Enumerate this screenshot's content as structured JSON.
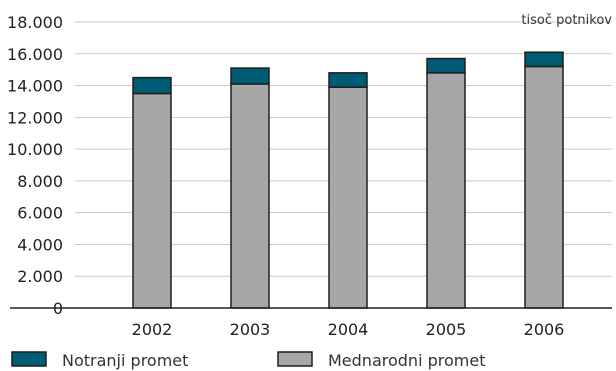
{
  "chart_data": {
    "type": "bar",
    "stacked": true,
    "unit_label": "tisoč potnikov",
    "categories": [
      "2002",
      "2003",
      "2004",
      "2005",
      "2006"
    ],
    "series": [
      {
        "name": "Mednarodni promet",
        "color": "#a7a7aa",
        "values": [
          13500,
          14100,
          13900,
          14800,
          15200
        ]
      },
      {
        "name": "Notranji promet",
        "color": "#005b74",
        "values": [
          1000,
          1000,
          900,
          900,
          900
        ]
      }
    ],
    "yticks": [
      "0",
      "2.000",
      "4.000",
      "6.000",
      "8.000",
      "10.000",
      "12.000",
      "14.000",
      "16.000",
      "18.000"
    ],
    "ylim": [
      0,
      18000
    ],
    "grid": true,
    "legend_position": "bottom"
  },
  "legend": [
    {
      "label": "Notranji promet",
      "color": "#005b74"
    },
    {
      "label": "Mednarodni promet",
      "color": "#a7a7aa"
    }
  ]
}
